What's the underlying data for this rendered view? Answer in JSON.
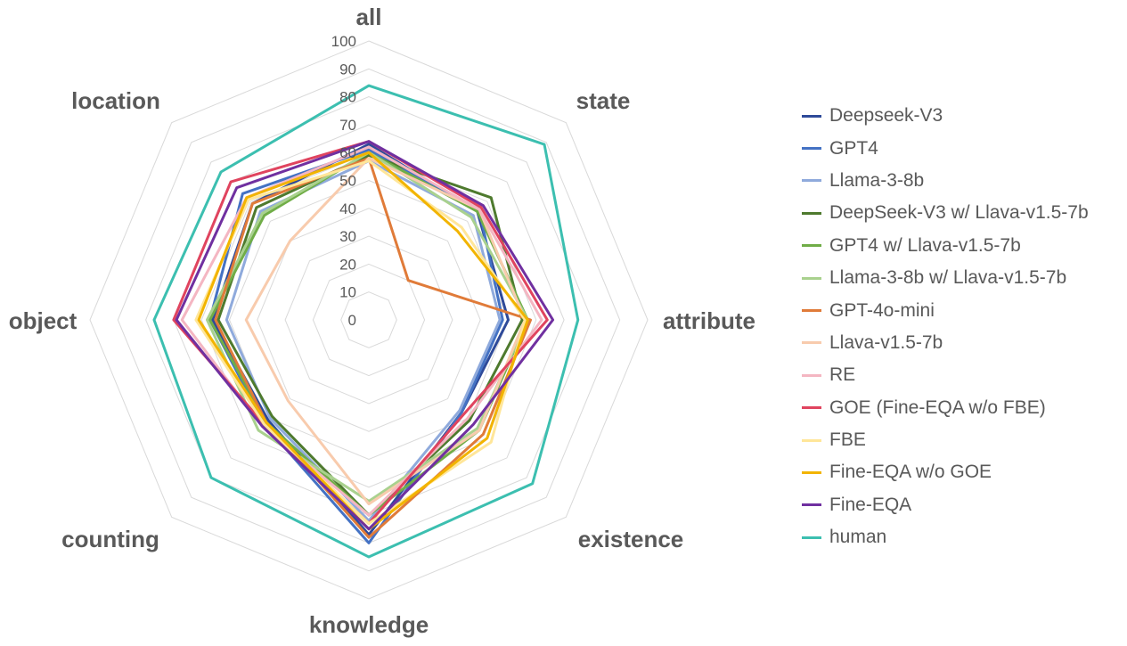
{
  "chart_data": {
    "type": "radar",
    "axes": [
      "all",
      "state",
      "attribute",
      "existence",
      "knowledge",
      "counting",
      "object",
      "location"
    ],
    "rlim": [
      0,
      100
    ],
    "ticks": [
      0,
      10,
      20,
      30,
      40,
      50,
      60,
      70,
      80,
      90,
      100
    ],
    "grid": true,
    "legend_position": "right",
    "series": [
      {
        "name": "Deepseek-V3",
        "color": "#2E4A99",
        "values": [
          63,
          55,
          50,
          47,
          77,
          51,
          56,
          59
        ]
      },
      {
        "name": "GPT4",
        "color": "#4472C4",
        "values": [
          61,
          56,
          48,
          47,
          80,
          53,
          57,
          64
        ]
      },
      {
        "name": "Llama-3-8b",
        "color": "#8FAADC",
        "values": [
          57,
          53,
          47,
          46,
          72,
          50,
          51,
          55
        ]
      },
      {
        "name": "DeepSeek-V3 w/ Llava-v1.5-7b",
        "color": "#4E7A2E",
        "values": [
          59,
          62,
          55,
          51,
          70,
          49,
          54,
          57
        ]
      },
      {
        "name": "GPT4 w/ Llava-v1.5-7b",
        "color": "#70AD47",
        "values": [
          60,
          55,
          57,
          56,
          70,
          52,
          57,
          53
        ]
      },
      {
        "name": "Llama-3-8b w/ Llava-v1.5-7b",
        "color": "#A9D18E",
        "values": [
          60,
          52,
          57,
          55,
          65,
          56,
          58,
          54
        ]
      },
      {
        "name": "GPT-4o-mini",
        "color": "#E07B39",
        "values": [
          58,
          20,
          58,
          58,
          78,
          52,
          55,
          59
        ]
      },
      {
        "name": "Llava-v1.5-7b",
        "color": "#F8CBAD",
        "values": [
          58,
          56,
          56,
          56,
          66,
          41,
          44,
          40
        ]
      },
      {
        "name": "RE",
        "color": "#F4B6C2",
        "values": [
          62,
          56,
          62,
          50,
          70,
          54,
          67,
          62
        ]
      },
      {
        "name": "GOE (Fine-EQA w/o FBE)",
        "color": "#E0445F",
        "values": [
          64,
          57,
          64,
          48,
          73,
          53,
          70,
          70
        ]
      },
      {
        "name": "FBE",
        "color": "#FFE699",
        "values": [
          57,
          47,
          56,
          62,
          73,
          53,
          62,
          61
        ]
      },
      {
        "name": "Fine-EQA w/o GOE",
        "color": "#F2B400",
        "values": [
          60,
          45,
          57,
          60,
          75,
          52,
          61,
          62
        ]
      },
      {
        "name": "Fine-EQA",
        "color": "#7030A0",
        "values": [
          64,
          58,
          66,
          53,
          75,
          54,
          69,
          67
        ]
      },
      {
        "name": "human",
        "color": "#3CBFB0",
        "values": [
          84,
          89,
          75,
          83,
          85,
          80,
          77,
          75
        ]
      }
    ]
  }
}
